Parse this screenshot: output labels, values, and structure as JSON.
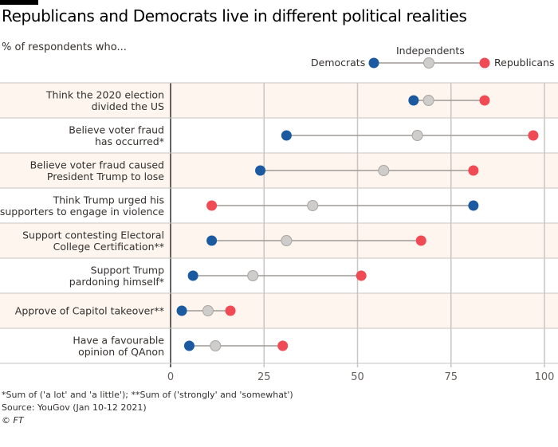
{
  "title": "Republicans and Democrats live in different political realities",
  "subtitle": "% of respondents who...",
  "colors": {
    "democrats": "#1b5aa1",
    "independents": "#cfcdcb",
    "republicans": "#f04b55",
    "band": "#fdf5ee",
    "connector": "#9e9a96",
    "grid": "#c9c5c2",
    "axis": "#33302e"
  },
  "chart_data": {
    "type": "dot",
    "title": "Republicans and Democrats live in different political realities",
    "subtitle": "% of respondents who...",
    "xlim": [
      0,
      100
    ],
    "xticks": [
      "0",
      "25",
      "50",
      "75",
      "100"
    ],
    "series_names": [
      "Democrats",
      "Independents",
      "Republicans"
    ],
    "categories": [
      [
        "Think the 2020 election",
        "divided the US"
      ],
      [
        "Believe voter fraud",
        "has occurred*"
      ],
      [
        "Believe voter fraud caused",
        "President Trump to lose"
      ],
      [
        "Think Trump urged his",
        "supporters to engage in violence"
      ],
      [
        "Support contesting Electoral",
        "College Certification**"
      ],
      [
        "Support Trump",
        "pardoning himself*"
      ],
      [
        "Approve of Capitol takeover**"
      ],
      [
        "Have a favourable",
        "opinion of QAnon"
      ]
    ],
    "series": [
      {
        "name": "Democrats",
        "values": [
          65,
          31,
          24,
          81,
          11,
          6,
          3,
          5
        ]
      },
      {
        "name": "Independents",
        "values": [
          69,
          66,
          57,
          38,
          31,
          22,
          10,
          12
        ]
      },
      {
        "name": "Republicans",
        "values": [
          84,
          97,
          81,
          11,
          67,
          51,
          16,
          30
        ]
      }
    ],
    "legend": "top-right"
  },
  "footnote": "*Sum of ('a lot' and 'a little'); **Sum of ('strongly' and 'somewhat')",
  "source": "Source: YouGov (Jan 10-12 2021)",
  "copyright": "© FT"
}
